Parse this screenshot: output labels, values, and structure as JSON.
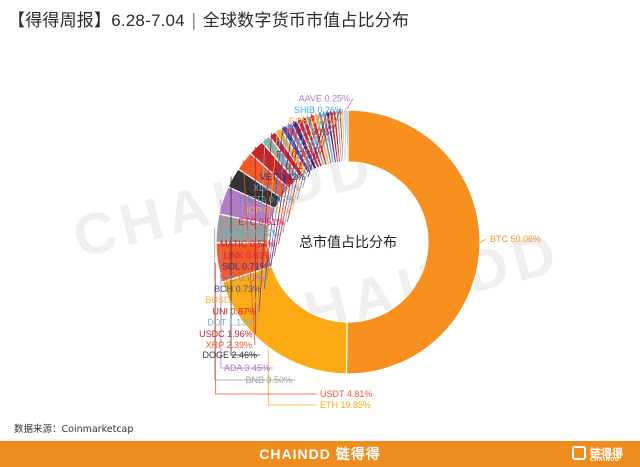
{
  "header": {
    "title": "【得得周报】",
    "date_range": "6.28-7.04",
    "subtitle": "全球数字货币市值占比分布"
  },
  "watermark": "CHAINDD",
  "source": "数据来源：Coinmarketcap",
  "footer": {
    "brand": "CHAINDD",
    "brand_cn": "链得得",
    "logo_cn": "链得得",
    "logo_en": "CHAINDD"
  },
  "chart_data": {
    "type": "pie",
    "style": "donut",
    "center_label": "总市值占比分布",
    "unit": "%",
    "slices": [
      {
        "label": "BTC",
        "value": 50.06,
        "text": "BTC 50.06%",
        "color": "#f7901e"
      },
      {
        "label": "ETH",
        "value": 19.85,
        "text": "ETH 19.85%",
        "color": "#fbaa14"
      },
      {
        "label": "USDT",
        "value": 4.81,
        "text": "USDT 4.81%",
        "color": "#f15a29"
      },
      {
        "label": "BNB",
        "value": 3.5,
        "text": "BNB 3.50%",
        "color": "#9d9d9d"
      },
      {
        "label": "ADA",
        "value": 3.45,
        "text": "ADA 3.45%",
        "color": "#b07cc6"
      },
      {
        "label": "DOGE",
        "value": 2.46,
        "text": "DOGE 2.46%",
        "color": "#333333"
      },
      {
        "label": "XRP",
        "value": 2.39,
        "text": "XRP 2.39%",
        "color": "#ef5a28"
      },
      {
        "label": "USDC",
        "value": 1.96,
        "text": "USDC 1.96%",
        "color": "#c1272d"
      },
      {
        "label": "DOT",
        "value": 1.13,
        "text": "DOT 1.13%",
        "color": "#7fb3b5"
      },
      {
        "label": "UNI",
        "value": 0.87,
        "text": "UNI 0.87%",
        "color": "#c1272d"
      },
      {
        "label": "BUSD",
        "value": 0.82,
        "text": "BUSD 0.82%",
        "color": "#fbb040"
      },
      {
        "label": "BCH",
        "value": 0.73,
        "text": "BCH 0.73%",
        "color": "#3953a4"
      },
      {
        "label": "LTC",
        "value": 0.71,
        "text": "LTC 0.71%",
        "color": "#8e7cc3"
      },
      {
        "label": "SOL",
        "value": 0.71,
        "text": "SOL 0.71%",
        "color": "#2e3192"
      },
      {
        "label": "LINK",
        "value": 0.61,
        "text": "LINK 0.61%",
        "color": "#d7263d"
      },
      {
        "label": "MATIC",
        "value": 0.54,
        "text": "MATIC 0.54%",
        "color": "#c1272d"
      },
      {
        "label": "WBTC",
        "value": 0.52,
        "text": "WBTC 0.52%",
        "color": "#6aaeb0"
      },
      {
        "label": "ETC",
        "value": 0.51,
        "text": "ETC 0.51%",
        "color": "#ed1c24"
      },
      {
        "label": "ICP",
        "value": 0.5,
        "text": "ICP 0.50%",
        "color": "#f7b44a"
      },
      {
        "label": "THETA",
        "value": 0.47,
        "text": "THETA 0.47%",
        "color": "#5b8fa8"
      },
      {
        "label": "XLM",
        "value": 0.47,
        "text": "XLM 0.47%",
        "color": "#9b8fc6"
      },
      {
        "label": "VET",
        "value": 0.42,
        "text": "VET 0.42%",
        "color": "#2e3192"
      },
      {
        "label": "DAI",
        "value": 0.42,
        "text": "DAI 0.42%",
        "color": "#c1272d"
      },
      {
        "label": "FIL",
        "value": 0.38,
        "text": "FIL 0.38%",
        "color": "#c1272d"
      },
      {
        "label": "TRX",
        "value": 0.36,
        "text": "TRX 0.36%",
        "color": "#7fb3b5"
      },
      {
        "label": "XMR",
        "value": 0.3,
        "text": "XMR 0.30%",
        "color": "#c1272d"
      },
      {
        "label": "EOS",
        "value": 0.29,
        "text": "EOS 0.29%",
        "color": "#fbb040"
      },
      {
        "label": "SHIB",
        "value": 0.26,
        "text": "SHIB 0.26%",
        "color": "#3fa9f5"
      },
      {
        "label": "AAVE",
        "value": 0.25,
        "text": "AAVE 0.25%",
        "color": "#b07cc6"
      }
    ]
  }
}
